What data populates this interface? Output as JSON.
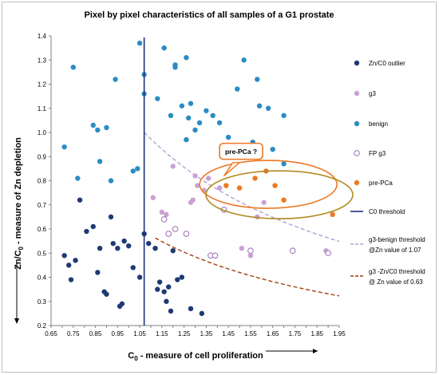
{
  "chart_data": {
    "type": "scatter",
    "title": "Pixel by pixel characteristics of all samples of a G1 prostate",
    "xlabel_main": "C",
    "xlabel_sub": "0",
    "xlabel_rest": " - measure of cell proliferation",
    "ylabel_pre": "Zn/C",
    "ylabel_sub": "0",
    "ylabel_rest": " - measure of Zn depletion",
    "xlim": [
      0.65,
      1.95
    ],
    "ylim": [
      0.2,
      1.4
    ],
    "xticks": [
      "0.65",
      "0.70",
      "0.75",
      "0.80",
      "0.85",
      "0.90",
      "0.95",
      "1.00",
      "1.05",
      "1.10",
      "1.15",
      "1.20",
      "1.25",
      "1.30",
      "1.35",
      "1.40",
      "1.45",
      "1.50",
      "1.55",
      "1.60",
      "1.65",
      "1.70",
      "1.75",
      "1.80",
      "1.85",
      "1.90",
      "1.95"
    ],
    "xtick_labels": [
      "0.65",
      "0.75",
      "0.85",
      "0.95",
      "1.05",
      "1.15",
      "1.25",
      "1.35",
      "1.45",
      "1.55",
      "1.65",
      "1.75",
      "1.85",
      "1.95"
    ],
    "yticks": [
      "0.2",
      "0.3",
      "0.4",
      "0.5",
      "0.6",
      "0.7",
      "0.8",
      "0.9",
      "1.0",
      "1.1",
      "1.2",
      "1.3",
      "1.4"
    ],
    "grid": false,
    "legend_position": "right",
    "series": [
      {
        "name": "Zn/C0 outlier",
        "color": "#1f3a73",
        "marker": "filled",
        "points": [
          [
            0.71,
            0.49
          ],
          [
            0.73,
            0.45
          ],
          [
            0.74,
            0.39
          ],
          [
            0.76,
            0.47
          ],
          [
            0.78,
            0.72
          ],
          [
            0.81,
            0.59
          ],
          [
            0.84,
            0.61
          ],
          [
            0.86,
            0.42
          ],
          [
            0.87,
            0.52
          ],
          [
            0.89,
            0.34
          ],
          [
            0.9,
            0.33
          ],
          [
            0.92,
            0.65
          ],
          [
            0.93,
            0.54
          ],
          [
            0.95,
            0.52
          ],
          [
            0.96,
            0.28
          ],
          [
            0.97,
            0.29
          ],
          [
            0.98,
            0.55
          ],
          [
            1.0,
            0.53
          ],
          [
            1.02,
            0.44
          ],
          [
            1.05,
            0.4
          ],
          [
            1.07,
            0.58
          ],
          [
            1.09,
            0.54
          ],
          [
            1.12,
            0.52
          ],
          [
            1.13,
            0.35
          ],
          [
            1.14,
            0.38
          ],
          [
            1.16,
            0.34
          ],
          [
            1.17,
            0.3
          ],
          [
            1.18,
            0.36
          ],
          [
            1.19,
            0.26
          ],
          [
            1.2,
            0.51
          ],
          [
            1.22,
            0.39
          ],
          [
            1.24,
            0.4
          ],
          [
            1.28,
            0.27
          ],
          [
            1.33,
            0.25
          ]
        ]
      },
      {
        "name": "g3",
        "color": "#c9a2d4",
        "marker": "filled",
        "points": [
          [
            1.11,
            0.73
          ],
          [
            1.15,
            0.67
          ],
          [
            1.17,
            0.66
          ],
          [
            1.2,
            0.86
          ],
          [
            1.28,
            0.71
          ],
          [
            1.29,
            0.72
          ],
          [
            1.3,
            0.82
          ],
          [
            1.31,
            0.78
          ],
          [
            1.34,
            0.76
          ],
          [
            1.36,
            0.81
          ],
          [
            1.41,
            0.77
          ],
          [
            1.51,
            0.52
          ],
          [
            1.55,
            0.49
          ],
          [
            1.58,
            0.65
          ],
          [
            1.61,
            0.71
          ],
          [
            1.89,
            0.51
          ]
        ]
      },
      {
        "name": "benign",
        "color": "#2b8cc4",
        "marker": "filled",
        "points": [
          [
            0.71,
            0.94
          ],
          [
            0.75,
            1.27
          ],
          [
            0.77,
            0.81
          ],
          [
            0.84,
            1.03
          ],
          [
            0.86,
            1.01
          ],
          [
            0.87,
            0.88
          ],
          [
            0.9,
            1.02
          ],
          [
            0.92,
            0.8
          ],
          [
            0.94,
            1.22
          ],
          [
            1.02,
            0.84
          ],
          [
            1.04,
            0.85
          ],
          [
            1.05,
            1.37
          ],
          [
            1.07,
            1.24
          ],
          [
            1.07,
            1.16
          ],
          [
            1.13,
            1.14
          ],
          [
            1.16,
            1.35
          ],
          [
            1.19,
            1.07
          ],
          [
            1.21,
            1.28
          ],
          [
            1.21,
            1.27
          ],
          [
            1.24,
            1.11
          ],
          [
            1.26,
            0.97
          ],
          [
            1.26,
            1.31
          ],
          [
            1.27,
            1.06
          ],
          [
            1.28,
            1.12
          ],
          [
            1.3,
            1.01
          ],
          [
            1.32,
            1.04
          ],
          [
            1.35,
            1.09
          ],
          [
            1.38,
            1.07
          ],
          [
            1.41,
            1.04
          ],
          [
            1.45,
            0.98
          ],
          [
            1.49,
            1.18
          ],
          [
            1.52,
            1.3
          ],
          [
            1.56,
            0.96
          ],
          [
            1.58,
            1.22
          ],
          [
            1.59,
            1.11
          ],
          [
            1.63,
            1.1
          ],
          [
            1.65,
            0.93
          ],
          [
            1.7,
            1.07
          ],
          [
            1.7,
            0.87
          ]
        ]
      },
      {
        "name": "FP g3",
        "color": "#9b6bb7",
        "marker": "open",
        "points": [
          [
            1.16,
            0.64
          ],
          [
            1.18,
            0.58
          ],
          [
            1.21,
            0.6
          ],
          [
            1.26,
            0.58
          ],
          [
            1.37,
            0.49
          ],
          [
            1.39,
            0.49
          ],
          [
            1.43,
            0.68
          ],
          [
            1.55,
            0.51
          ],
          [
            1.74,
            0.51
          ],
          [
            1.9,
            0.5
          ]
        ]
      },
      {
        "name": "pre-PCa",
        "color": "#ee7722",
        "marker": "filled",
        "points": [
          [
            1.44,
            0.78
          ],
          [
            1.5,
            0.77
          ],
          [
            1.57,
            0.81
          ],
          [
            1.62,
            0.84
          ],
          [
            1.66,
            0.78
          ],
          [
            1.7,
            0.72
          ],
          [
            1.92,
            0.66
          ]
        ]
      }
    ],
    "c0_threshold": {
      "name": "C0 threshold",
      "x": 1.07,
      "color": "#1f2f80"
    },
    "curves": [
      {
        "name": "g3-benign threshold @Zn value of 1.07",
        "legend_line1": "g3-benign threshold",
        "legend_line2": "@Zn value of 1.07",
        "k": 1.07,
        "color": "#b39fd2",
        "x_from": 1.07,
        "x_to": 1.95
      },
      {
        "name": "g3 -Zn/C0 threshold @ Zn value of 0.63",
        "legend_line1": "g3 -Zn/C0 threshold",
        "legend_line2": "@ Zn value of 0.63",
        "k": 0.63,
        "color": "#a04010",
        "x_from": 1.12,
        "x_to": 1.95
      }
    ],
    "annotation": {
      "text": "pre-PCa ?",
      "border": "#ee7722"
    }
  }
}
